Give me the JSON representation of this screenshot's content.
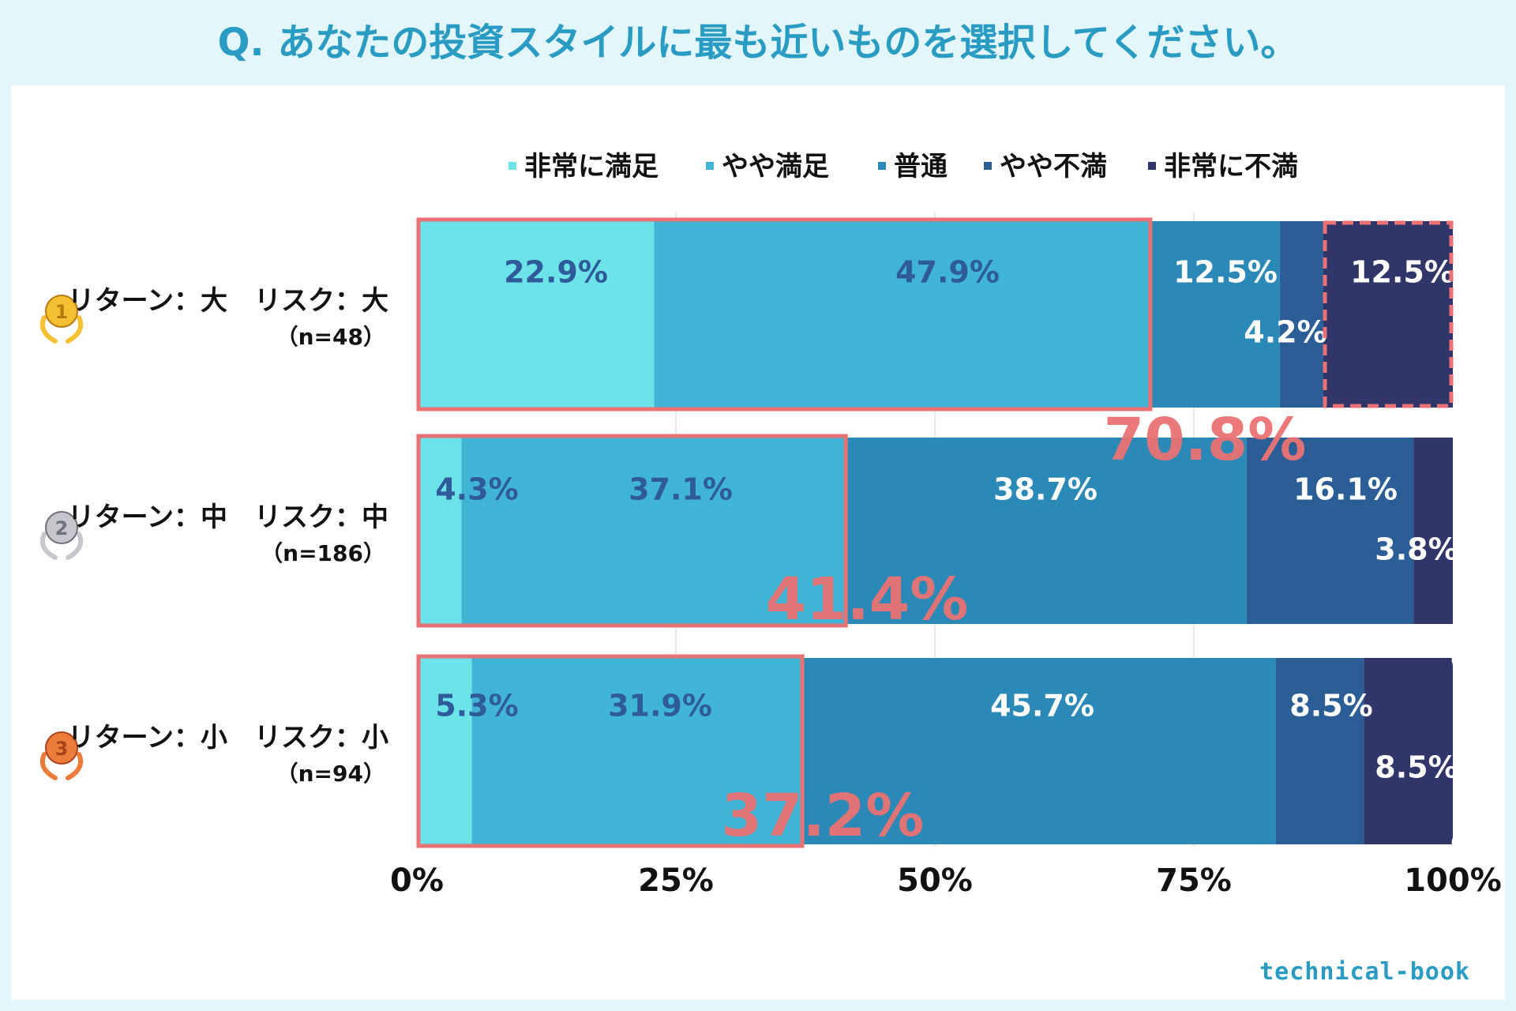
{
  "page": {
    "title": "Q. あなたの投資スタイルに最も近いものを選択してください。",
    "watermark": "technical-book"
  },
  "chart_data": {
    "type": "bar",
    "orientation": "horizontal",
    "stacked": "percent",
    "title": "Q. あなたの投資スタイルに最も近いものを選択してください。",
    "legend_position": "top",
    "xlim": [
      0,
      100
    ],
    "xticks": [
      "0%",
      "25%",
      "50%",
      "75%",
      "100%"
    ],
    "categories": [
      {
        "rank": "1",
        "label": "リターン：大　リスク：大",
        "n": "（n=48）"
      },
      {
        "rank": "2",
        "label": "リターン：中　リスク：中",
        "n": "（n=186）"
      },
      {
        "rank": "3",
        "label": "リターン：小　リスク：小",
        "n": "（n=94）"
      }
    ],
    "series": [
      {
        "name": "非常に満足",
        "color": "#6be3e8",
        "label_color": "#2f5b9a",
        "values": [
          22.9,
          4.3,
          5.3
        ],
        "labels": [
          "22.9%",
          "4.3%",
          "5.3%"
        ]
      },
      {
        "name": "やや満足",
        "color": "#41b5d6",
        "label_color": "#2f5b9a",
        "values": [
          47.9,
          37.1,
          31.9
        ],
        "labels": [
          "47.9%",
          "37.1%",
          "31.9%"
        ]
      },
      {
        "name": "普通",
        "color": "#2b89b8",
        "label_color": "#ffffff",
        "values": [
          12.5,
          38.7,
          45.7
        ],
        "labels": [
          "12.5%",
          "38.7%",
          "45.7%"
        ]
      },
      {
        "name": "やや不満",
        "color": "#2b5d96",
        "label_color": "#ffffff",
        "values": [
          4.2,
          16.1,
          8.5
        ],
        "labels": [
          "4.2%",
          "16.1%",
          "8.5%"
        ]
      },
      {
        "name": "非常に不満",
        "color": "#303669",
        "label_color": "#ffffff",
        "values": [
          12.5,
          3.8,
          8.5
        ],
        "labels": [
          "12.5%",
          "3.8%",
          "8.5%"
        ]
      }
    ],
    "annotations": {
      "highlight_color": "#ea7272",
      "satisfied_totals": [
        70.8,
        41.4,
        37.2
      ],
      "satisfied_labels": [
        "70.8%",
        "41.4%",
        "37.2%"
      ]
    }
  }
}
